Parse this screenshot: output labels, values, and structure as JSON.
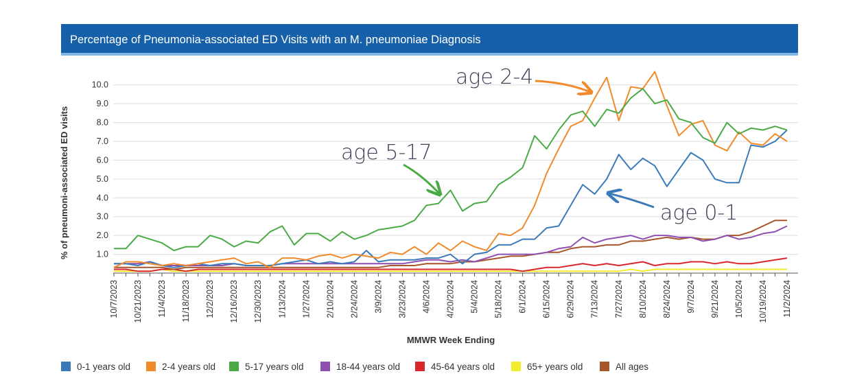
{
  "header": {
    "title": "Percentage of Pneumonia-associated ED Visits with an M. pneumoniae Diagnosis"
  },
  "chart_data": {
    "type": "line",
    "title": "Percentage of Pneumonia-associated ED Visits with an M. pneumoniae Diagnosis",
    "xlabel": "MMWR Week Ending",
    "ylabel": "% of pneumoni-associated ED visits",
    "ylim": [
      0,
      10.5
    ],
    "yticks": [
      "1.0",
      "2.0",
      "3.0",
      "4.0",
      "5.0",
      "6.0",
      "7.0",
      "8.0",
      "9.0",
      "10.0"
    ],
    "grid": "horizontal",
    "legend_position": "bottom",
    "x": [
      "10/7/2023",
      "10/14/2023",
      "10/21/2023",
      "10/28/2023",
      "11/4/2023",
      "11/11/2023",
      "11/18/2023",
      "11/25/2023",
      "12/2/2023",
      "12/9/2023",
      "12/16/2023",
      "12/23/2023",
      "12/30/2023",
      "1/6/2024",
      "1/13/2024",
      "1/20/2024",
      "1/27/2024",
      "2/3/2024",
      "2/10/2024",
      "2/17/2024",
      "2/24/2024",
      "3/2/2024",
      "3/9/2024",
      "3/16/2024",
      "3/23/2024",
      "3/30/2024",
      "4/6/2024",
      "4/13/2024",
      "4/20/2024",
      "4/27/2024",
      "5/4/2024",
      "5/11/2024",
      "5/18/2024",
      "5/25/2024",
      "6/1/2024",
      "6/8/2024",
      "6/15/2024",
      "6/22/2024",
      "6/29/2024",
      "7/6/2024",
      "7/13/2024",
      "7/20/2024",
      "7/27/2024",
      "8/3/2024",
      "8/10/2024",
      "8/17/2024",
      "8/24/2024",
      "8/31/2024",
      "9/7/2024",
      "9/14/2024",
      "9/21/2024",
      "9/28/2024",
      "10/5/2024",
      "10/12/2024",
      "10/19/2024",
      "10/26/2024",
      "11/2/2024"
    ],
    "x_tick_labels": [
      "10/7/2023",
      "10/21/2023",
      "11/4/2023",
      "11/18/2023",
      "12/2/2023",
      "12/16/2023",
      "12/30/2023",
      "1/13/2024",
      "1/27/2024",
      "2/10/2024",
      "2/24/2024",
      "3/9/2024",
      "3/23/2024",
      "4/6/2024",
      "4/20/2024",
      "5/4/2024",
      "5/18/2024",
      "6/1/2024",
      "6/15/2024",
      "6/29/2024",
      "7/13/2024",
      "7/27/2024",
      "8/10/2024",
      "8/24/2024",
      "9/7/2024",
      "9/21/2024",
      "10/5/2024",
      "10/19/2024",
      "11/2/2024"
    ],
    "series": [
      {
        "name": "0-1 years old",
        "color": "#3a7ab8",
        "values": [
          0.5,
          0.5,
          0.4,
          0.6,
          0.4,
          0.3,
          0.4,
          0.5,
          0.4,
          0.5,
          0.5,
          0.4,
          0.4,
          0.4,
          0.5,
          0.6,
          0.7,
          0.5,
          0.6,
          0.5,
          0.6,
          1.2,
          0.6,
          0.7,
          0.7,
          0.7,
          0.8,
          0.8,
          1.0,
          0.5,
          1.0,
          1.1,
          1.5,
          1.5,
          1.8,
          1.8,
          2.4,
          2.5,
          3.6,
          4.7,
          4.2,
          5.0,
          6.3,
          5.5,
          6.1,
          5.7,
          4.6,
          5.5,
          6.4,
          6.0,
          5.0,
          4.8,
          4.8,
          6.8,
          6.7,
          7.0,
          7.6
        ]
      },
      {
        "name": "2-4 years old",
        "color": "#f28a2a",
        "values": [
          0.3,
          0.6,
          0.6,
          0.5,
          0.4,
          0.5,
          0.4,
          0.5,
          0.6,
          0.7,
          0.8,
          0.5,
          0.6,
          0.3,
          0.8,
          0.8,
          0.7,
          0.9,
          1.0,
          0.8,
          1.0,
          0.9,
          0.8,
          1.1,
          1.0,
          1.4,
          1.0,
          1.6,
          1.2,
          1.7,
          1.4,
          1.2,
          2.1,
          2.0,
          2.4,
          3.6,
          5.3,
          6.6,
          7.8,
          8.1,
          9.3,
          10.4,
          8.1,
          9.9,
          9.8,
          10.7,
          8.9,
          7.3,
          7.9,
          8.1,
          6.8,
          6.5,
          7.5,
          6.9,
          6.8,
          7.4,
          7.0
        ]
      },
      {
        "name": "5-17 years old",
        "color": "#4aaa45",
        "values": [
          1.3,
          1.3,
          2.0,
          1.8,
          1.6,
          1.2,
          1.4,
          1.4,
          2.0,
          1.8,
          1.4,
          1.7,
          1.6,
          2.2,
          2.5,
          1.5,
          2.1,
          2.1,
          1.7,
          2.2,
          1.8,
          2.0,
          2.3,
          2.4,
          2.5,
          2.8,
          3.6,
          3.7,
          4.4,
          3.3,
          3.7,
          3.8,
          4.7,
          5.1,
          5.6,
          7.3,
          6.6,
          7.6,
          8.4,
          8.6,
          7.8,
          8.7,
          8.5,
          9.3,
          9.8,
          9.0,
          9.2,
          8.2,
          8.0,
          7.2,
          6.9,
          8.0,
          7.4,
          7.7,
          7.6,
          7.8,
          7.6
        ]
      },
      {
        "name": "18-44 years old",
        "color": "#8e4fb0",
        "values": [
          0.5,
          0.5,
          0.5,
          0.6,
          0.4,
          0.4,
          0.4,
          0.4,
          0.4,
          0.4,
          0.5,
          0.4,
          0.4,
          0.4,
          0.5,
          0.5,
          0.5,
          0.5,
          0.5,
          0.5,
          0.5,
          0.5,
          0.5,
          0.5,
          0.5,
          0.6,
          0.7,
          0.7,
          0.6,
          0.7,
          0.6,
          0.8,
          1.0,
          1.0,
          1.0,
          1.0,
          1.1,
          1.3,
          1.4,
          1.9,
          1.6,
          1.8,
          1.9,
          2.0,
          1.8,
          2.0,
          2.0,
          1.9,
          1.9,
          1.7,
          1.8,
          2.0,
          1.8,
          1.9,
          2.1,
          2.2,
          2.5
        ]
      },
      {
        "name": "45-64 years old",
        "color": "#d8262b",
        "values": [
          0.2,
          0.2,
          0.1,
          0.1,
          0.2,
          0.2,
          0.1,
          0.2,
          0.2,
          0.2,
          0.2,
          0.2,
          0.2,
          0.2,
          0.2,
          0.2,
          0.2,
          0.2,
          0.2,
          0.2,
          0.2,
          0.2,
          0.2,
          0.2,
          0.2,
          0.2,
          0.2,
          0.2,
          0.2,
          0.2,
          0.2,
          0.2,
          0.2,
          0.2,
          0.1,
          0.2,
          0.3,
          0.3,
          0.4,
          0.5,
          0.4,
          0.5,
          0.4,
          0.5,
          0.6,
          0.4,
          0.5,
          0.5,
          0.6,
          0.6,
          0.5,
          0.6,
          0.5,
          0.5,
          0.6,
          0.7,
          0.8
        ]
      },
      {
        "name": "65+ years old",
        "color": "#f2ec2a",
        "values": [
          0.1,
          0.1,
          0.1,
          0.1,
          0.2,
          0.1,
          0.1,
          0.1,
          0.1,
          0.1,
          0.1,
          0.1,
          0.1,
          0.1,
          0.1,
          0.1,
          0.1,
          0.1,
          0.1,
          0.1,
          0.1,
          0.1,
          0.1,
          0.1,
          0.1,
          0.1,
          0.1,
          0.1,
          0.1,
          0.1,
          0.1,
          0.1,
          0.1,
          0.1,
          0.1,
          0.1,
          0.1,
          0.1,
          0.1,
          0.1,
          0.1,
          0.1,
          0.1,
          0.2,
          0.1,
          0.2,
          0.2,
          0.2,
          0.2,
          0.2,
          0.2,
          0.2,
          0.2,
          0.2,
          0.2,
          0.2,
          0.2
        ]
      },
      {
        "name": "All ages",
        "color": "#a5562a",
        "values": [
          0.3,
          0.3,
          0.3,
          0.3,
          0.3,
          0.2,
          0.3,
          0.3,
          0.3,
          0.3,
          0.3,
          0.3,
          0.3,
          0.3,
          0.3,
          0.3,
          0.3,
          0.3,
          0.3,
          0.3,
          0.3,
          0.3,
          0.3,
          0.4,
          0.4,
          0.4,
          0.5,
          0.5,
          0.5,
          0.6,
          0.6,
          0.7,
          0.8,
          0.9,
          0.9,
          1.0,
          1.1,
          1.1,
          1.3,
          1.4,
          1.4,
          1.5,
          1.5,
          1.7,
          1.7,
          1.8,
          1.9,
          1.8,
          1.9,
          1.8,
          1.8,
          2.0,
          2.0,
          2.2,
          2.5,
          2.8,
          2.8
        ]
      }
    ],
    "annotations": [
      {
        "text": "age 2-4",
        "color": "#f28a2a",
        "points_to": "2-4 years old"
      },
      {
        "text": "age 5-17",
        "color": "#4aaa45",
        "points_to": "5-17 years old"
      },
      {
        "text": "age 0-1",
        "color": "#3a7ab8",
        "points_to": "0-1 years old"
      }
    ]
  }
}
